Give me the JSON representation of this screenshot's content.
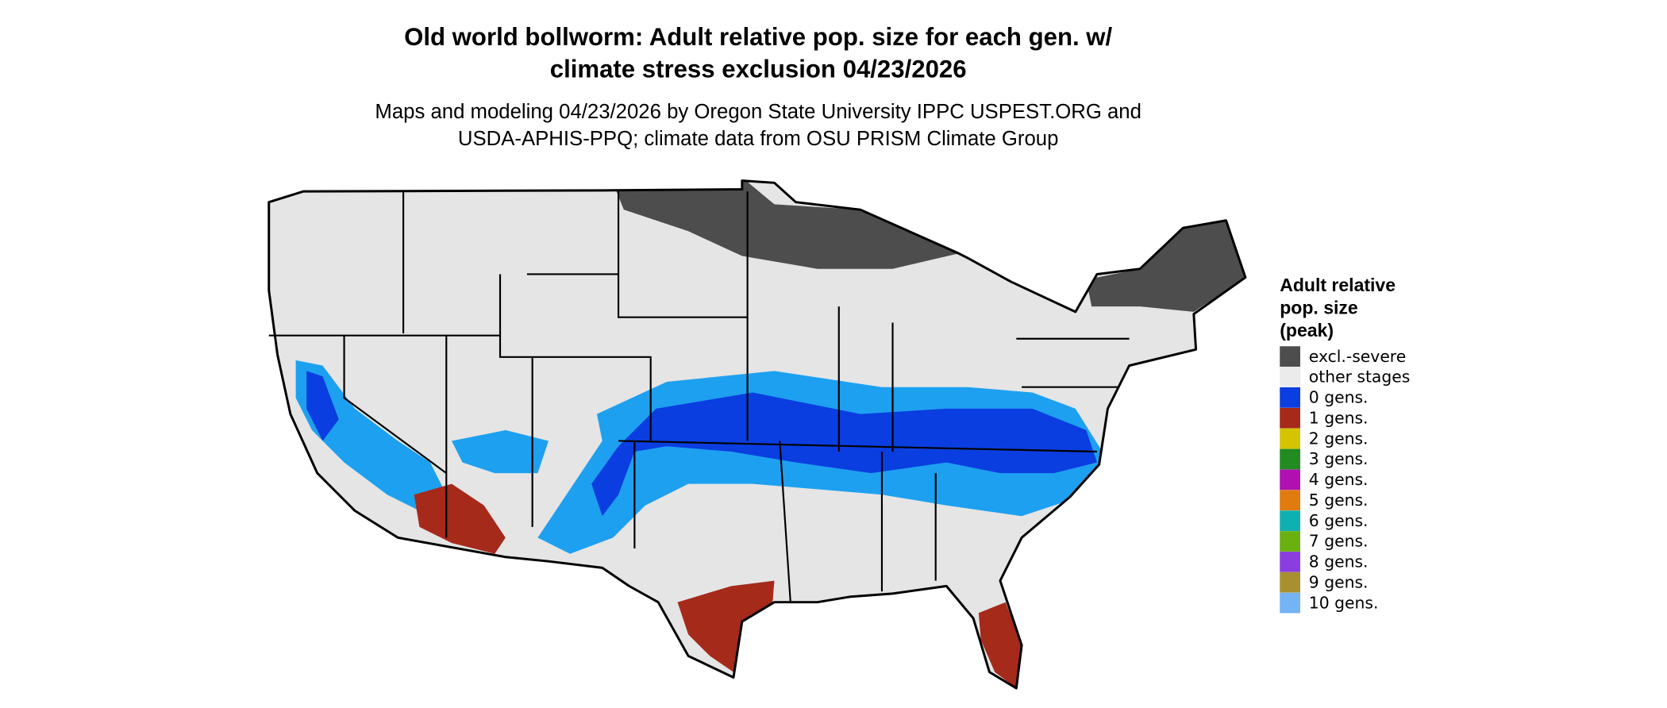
{
  "title": [
    "Old world bollworm: Adult relative pop. size for each gen. w/",
    "climate stress exclusion 04/23/2026"
  ],
  "subtitle": [
    "Maps and modeling 04/23/2026 by Oregon State University IPPC USPEST.ORG and",
    "USDA-APHIS-PPQ; climate data from OSU PRISM Climate Group"
  ],
  "legend": {
    "title": [
      "Adult relative",
      "pop. size",
      "(peak)"
    ],
    "items": [
      {
        "label": "excl.-severe",
        "color": "#4d4d4d"
      },
      {
        "label": "other stages",
        "color": "#ebebeb"
      },
      {
        "label": "0 gens.",
        "color": "#0a3ee0"
      },
      {
        "label": "1 gens.",
        "color": "#a52a1a"
      },
      {
        "label": "2 gens.",
        "color": "#d4c400"
      },
      {
        "label": "3 gens.",
        "color": "#228b22"
      },
      {
        "label": "4 gens.",
        "color": "#b010b0"
      },
      {
        "label": "5 gens.",
        "color": "#e07b10"
      },
      {
        "label": "6 gens.",
        "color": "#10b0b0"
      },
      {
        "label": "7 gens.",
        "color": "#6ab010"
      },
      {
        "label": "8 gens.",
        "color": "#8a3ee0"
      },
      {
        "label": "9 gens.",
        "color": "#a89030"
      },
      {
        "label": "10 gens.",
        "color": "#74b4f4"
      }
    ]
  }
}
